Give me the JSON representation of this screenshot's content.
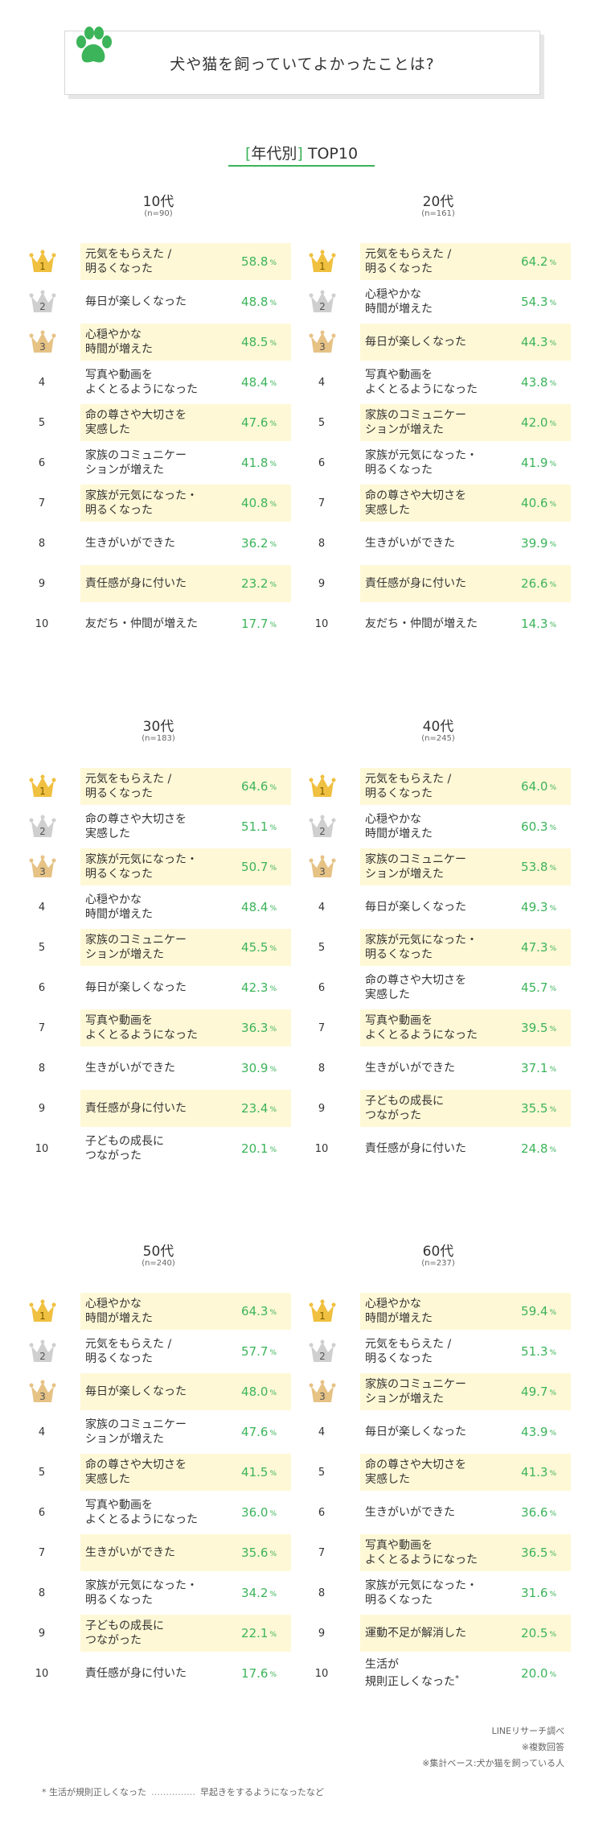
{
  "header": {
    "title": "犬や猫を飼っていてよかったことは?"
  },
  "subtitle": {
    "open": "[",
    "text": "年代別",
    "close": "]",
    "suffix": " TOP10"
  },
  "colors": {
    "accent": "#3cb45a",
    "highlight": "#fff8d6",
    "gold": "#f0c040",
    "silver": "#cfcfcf",
    "bronze": "#e6c285"
  },
  "icons": {
    "header": "paw-icon",
    "rank1": "gold-crown-icon",
    "rank2": "silver-crown-icon",
    "rank3": "bronze-crown-icon"
  },
  "chart_data": [
    {
      "type": "table",
      "title": "10代",
      "subtitle": "(n=90)",
      "rows": [
        {
          "rank": "1",
          "label": [
            "元気をもらえた /",
            "明るくなった"
          ],
          "value": "58.8"
        },
        {
          "rank": "2",
          "label": [
            "毎日が楽しくなった"
          ],
          "value": "48.8"
        },
        {
          "rank": "3",
          "label": [
            "心穏やかな",
            "時間が増えた"
          ],
          "value": "48.5"
        },
        {
          "rank": "4",
          "label": [
            "写真や動画を",
            "よくとるようになった"
          ],
          "value": "48.4"
        },
        {
          "rank": "5",
          "label": [
            "命の尊さや大切さを",
            "実感した"
          ],
          "value": "47.6"
        },
        {
          "rank": "6",
          "label": [
            "家族のコミュニケー",
            "ションが増えた"
          ],
          "value": "41.8"
        },
        {
          "rank": "7",
          "label": [
            "家族が元気になった・",
            "明るくなった"
          ],
          "value": "40.8"
        },
        {
          "rank": "8",
          "label": [
            "生きがいができた"
          ],
          "value": "36.2"
        },
        {
          "rank": "9",
          "label": [
            "責任感が身に付いた"
          ],
          "value": "23.2"
        },
        {
          "rank": "10",
          "label": [
            "友だち・仲間が増えた"
          ],
          "value": "17.7"
        }
      ]
    },
    {
      "type": "table",
      "title": "20代",
      "subtitle": "(n=161)",
      "rows": [
        {
          "rank": "1",
          "label": [
            "元気をもらえた /",
            "明るくなった"
          ],
          "value": "64.2"
        },
        {
          "rank": "2",
          "label": [
            "心穏やかな",
            "時間が増えた"
          ],
          "value": "54.3"
        },
        {
          "rank": "3",
          "label": [
            "毎日が楽しくなった"
          ],
          "value": "44.3"
        },
        {
          "rank": "4",
          "label": [
            "写真や動画を",
            "よくとるようになった"
          ],
          "value": "43.8"
        },
        {
          "rank": "5",
          "label": [
            "家族のコミュニケー",
            "ションが増えた"
          ],
          "value": "42.0"
        },
        {
          "rank": "6",
          "label": [
            "家族が元気になった・",
            "明るくなった"
          ],
          "value": "41.9"
        },
        {
          "rank": "7",
          "label": [
            "命の尊さや大切さを",
            "実感した"
          ],
          "value": "40.6"
        },
        {
          "rank": "8",
          "label": [
            "生きがいができた"
          ],
          "value": "39.9"
        },
        {
          "rank": "9",
          "label": [
            "責任感が身に付いた"
          ],
          "value": "26.6"
        },
        {
          "rank": "10",
          "label": [
            "友だち・仲間が増えた"
          ],
          "value": "14.3"
        }
      ]
    },
    {
      "type": "table",
      "title": "30代",
      "subtitle": "(n=183)",
      "rows": [
        {
          "rank": "1",
          "label": [
            "元気をもらえた /",
            "明るくなった"
          ],
          "value": "64.6"
        },
        {
          "rank": "2",
          "label": [
            "命の尊さや大切さを",
            "実感した"
          ],
          "value": "51.1"
        },
        {
          "rank": "3",
          "label": [
            "家族が元気になった・",
            "明るくなった"
          ],
          "value": "50.7"
        },
        {
          "rank": "4",
          "label": [
            "心穏やかな",
            "時間が増えた"
          ],
          "value": "48.4"
        },
        {
          "rank": "5",
          "label": [
            "家族のコミュニケー",
            "ションが増えた"
          ],
          "value": "45.5"
        },
        {
          "rank": "6",
          "label": [
            "毎日が楽しくなった"
          ],
          "value": "42.3"
        },
        {
          "rank": "7",
          "label": [
            "写真や動画を",
            "よくとるようになった"
          ],
          "value": "36.3"
        },
        {
          "rank": "8",
          "label": [
            "生きがいができた"
          ],
          "value": "30.9"
        },
        {
          "rank": "9",
          "label": [
            "責任感が身に付いた"
          ],
          "value": "23.4"
        },
        {
          "rank": "10",
          "label": [
            "子どもの成長に",
            "つながった"
          ],
          "value": "20.1"
        }
      ]
    },
    {
      "type": "table",
      "title": "40代",
      "subtitle": "(n=245)",
      "rows": [
        {
          "rank": "1",
          "label": [
            "元気をもらえた /",
            "明るくなった"
          ],
          "value": "64.0"
        },
        {
          "rank": "2",
          "label": [
            "心穏やかな",
            "時間が増えた"
          ],
          "value": "60.3"
        },
        {
          "rank": "3",
          "label": [
            "家族のコミュニケー",
            "ションが増えた"
          ],
          "value": "53.8"
        },
        {
          "rank": "4",
          "label": [
            "毎日が楽しくなった"
          ],
          "value": "49.3"
        },
        {
          "rank": "5",
          "label": [
            "家族が元気になった・",
            "明るくなった"
          ],
          "value": "47.3"
        },
        {
          "rank": "6",
          "label": [
            "命の尊さや大切さを",
            "実感した"
          ],
          "value": "45.7"
        },
        {
          "rank": "7",
          "label": [
            "写真や動画を",
            "よくとるようになった"
          ],
          "value": "39.5"
        },
        {
          "rank": "8",
          "label": [
            "生きがいができた"
          ],
          "value": "37.1"
        },
        {
          "rank": "9",
          "label": [
            "子どもの成長に",
            "つながった"
          ],
          "value": "35.5"
        },
        {
          "rank": "10",
          "label": [
            "責任感が身に付いた"
          ],
          "value": "24.8"
        }
      ]
    },
    {
      "type": "table",
      "title": "50代",
      "subtitle": "(n=240)",
      "rows": [
        {
          "rank": "1",
          "label": [
            "心穏やかな",
            "時間が増えた"
          ],
          "value": "64.3"
        },
        {
          "rank": "2",
          "label": [
            "元気をもらえた /",
            "明るくなった"
          ],
          "value": "57.7"
        },
        {
          "rank": "3",
          "label": [
            "毎日が楽しくなった"
          ],
          "value": "48.0"
        },
        {
          "rank": "4",
          "label": [
            "家族のコミュニケー",
            "ションが増えた"
          ],
          "value": "47.6"
        },
        {
          "rank": "5",
          "label": [
            "命の尊さや大切さを",
            "実感した"
          ],
          "value": "41.5"
        },
        {
          "rank": "6",
          "label": [
            "写真や動画を",
            "よくとるようになった"
          ],
          "value": "36.0"
        },
        {
          "rank": "7",
          "label": [
            "生きがいができた"
          ],
          "value": "35.6"
        },
        {
          "rank": "8",
          "label": [
            "家族が元気になった・",
            "明るくなった"
          ],
          "value": "34.2"
        },
        {
          "rank": "9",
          "label": [
            "子どもの成長に",
            "つながった"
          ],
          "value": "22.1"
        },
        {
          "rank": "10",
          "label": [
            "責任感が身に付いた"
          ],
          "value": "17.6"
        }
      ]
    },
    {
      "type": "table",
      "title": "60代",
      "subtitle": "(n=237)",
      "rows": [
        {
          "rank": "1",
          "label": [
            "心穏やかな",
            "時間が増えた"
          ],
          "value": "59.4"
        },
        {
          "rank": "2",
          "label": [
            "元気をもらえた /",
            "明るくなった"
          ],
          "value": "51.3"
        },
        {
          "rank": "3",
          "label": [
            "家族のコミュニケー",
            "ションが増えた"
          ],
          "value": "49.7"
        },
        {
          "rank": "4",
          "label": [
            "毎日が楽しくなった"
          ],
          "value": "43.9"
        },
        {
          "rank": "5",
          "label": [
            "命の尊さや大切さを",
            "実感した"
          ],
          "value": "41.3"
        },
        {
          "rank": "6",
          "label": [
            "生きがいができた"
          ],
          "value": "36.6"
        },
        {
          "rank": "7",
          "label": [
            "写真や動画を",
            "よくとるようになった"
          ],
          "value": "36.5"
        },
        {
          "rank": "8",
          "label": [
            "家族が元気になった・",
            "明るくなった"
          ],
          "value": "31.6"
        },
        {
          "rank": "9",
          "label": [
            "運動不足が解消した"
          ],
          "value": "20.5"
        },
        {
          "rank": "10",
          "label": [
            "生活が",
            "規則正しくなった"
          ],
          "value": "20.0",
          "asterisk": "*"
        }
      ]
    }
  ],
  "percent_unit": "%",
  "footer": {
    "notes": [
      "LINEリサーチ調べ",
      "※複数回答",
      "※集計ベース:犬か猫を飼っている人"
    ],
    "bottom_left": "* 生活が規則正しくなった",
    "bottom_dots": "……………",
    "bottom_right": "早起きをするようになったなど"
  }
}
